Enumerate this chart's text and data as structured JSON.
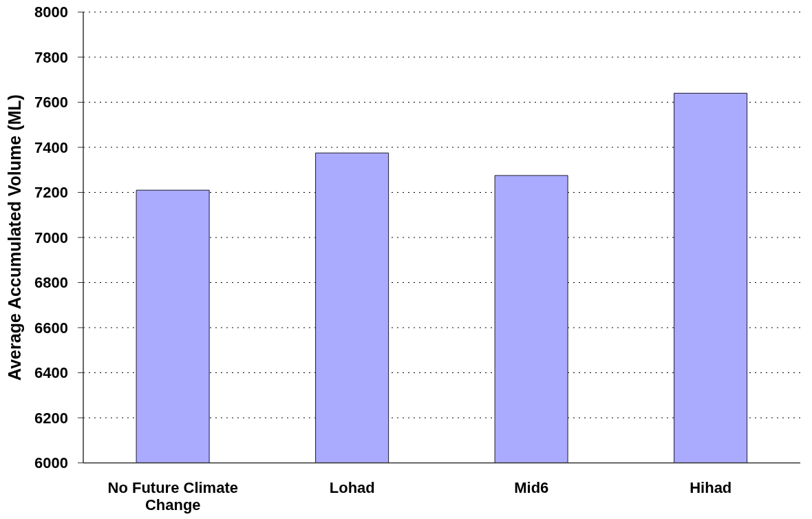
{
  "chart_data": {
    "type": "bar",
    "ylabel": "Average Accumulated Volume (ML)",
    "categories": [
      "No Future Climate Change",
      "Lohad",
      "Mid6",
      "Hihad"
    ],
    "values": [
      7210,
      7375,
      7275,
      7640
    ],
    "color": "#aaaaff",
    "ylim": [
      6000,
      8000
    ],
    "yticks": [
      6000,
      6200,
      6400,
      6600,
      6800,
      7000,
      7200,
      7400,
      7600,
      7800,
      8000
    ],
    "grid": "y"
  }
}
